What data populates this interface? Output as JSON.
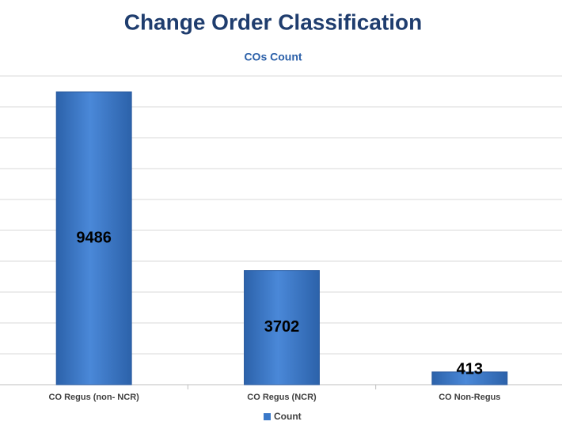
{
  "chart_data": {
    "type": "bar",
    "title": "Change Order Classification",
    "subtitle": "COs Count",
    "categories": [
      "CO Regus (non- NCR)",
      "CO Regus  (NCR)",
      "CO Non-Regus"
    ],
    "series": [
      {
        "name": "Count",
        "color": "#3a78c8",
        "values": [
          9486,
          3702,
          413
        ]
      }
    ],
    "ylim": [
      0,
      10000
    ],
    "yticks": [
      0,
      1000,
      2000,
      3000,
      4000,
      5000,
      6000,
      7000,
      8000,
      9000,
      10000
    ],
    "grid": true,
    "legend": "bottom"
  }
}
